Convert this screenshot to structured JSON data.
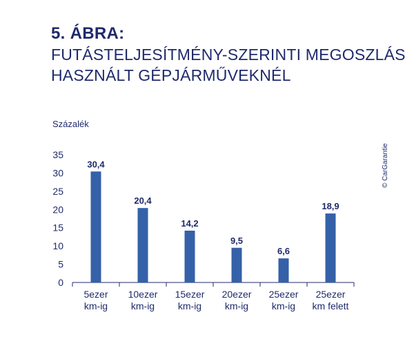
{
  "header": {
    "figure_number": "5. ÁBRA:",
    "title_line1": "FUTÁSTELJESÍTMÉNY-SZERINTI MEGOSZLÁS",
    "title_line2": "HASZNÁLT GÉPJÁRMŰVEKNÉL"
  },
  "copyright": "© CarGarantie",
  "colors": {
    "bar": "#3461a8",
    "text": "#1f2a6b",
    "axis": "#1f2a6b"
  },
  "chart_data": {
    "type": "bar",
    "ylabel": "Százalék",
    "ylim": [
      0,
      35
    ],
    "yticks": [
      "0",
      "5",
      "10",
      "15",
      "20",
      "25",
      "30",
      "35"
    ],
    "categories": [
      [
        "5ezer",
        "km-ig"
      ],
      [
        "10ezer",
        "km-ig"
      ],
      [
        "15ezer",
        "km-ig"
      ],
      [
        "20ezer",
        "km-ig"
      ],
      [
        "25ezer",
        "km-ig"
      ],
      [
        "25ezer",
        "km felett"
      ]
    ],
    "values": [
      30.4,
      20.4,
      14.2,
      9.5,
      6.6,
      18.9
    ],
    "value_labels": [
      "30,4",
      "20,4",
      "14,2",
      "9,5",
      "6,6",
      "18,9"
    ],
    "grid": false
  }
}
